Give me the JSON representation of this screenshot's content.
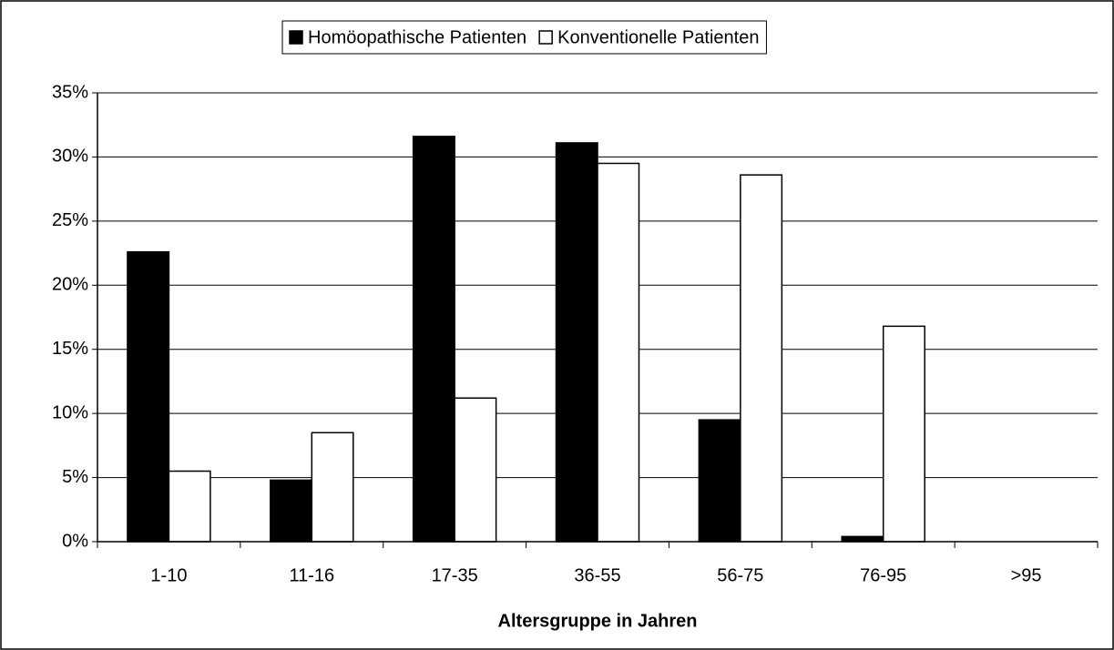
{
  "chart_data": {
    "type": "bar",
    "categories": [
      "1-10",
      "11-16",
      "17-35",
      "36-55",
      "56-75",
      "76-95",
      ">95"
    ],
    "series": [
      {
        "name": "Homöopathische Patienten",
        "color": "#000000",
        "values": [
          22.6,
          4.8,
          31.6,
          31.1,
          9.5,
          0.4,
          0
        ]
      },
      {
        "name": "Konventionelle Patienten",
        "color": "#ffffff",
        "values": [
          5.5,
          8.5,
          11.2,
          29.5,
          28.6,
          16.8,
          0
        ]
      }
    ],
    "xlabel": "Altersgruppe in Jahren",
    "ylim": [
      0,
      35
    ],
    "yticks": [
      {
        "value": 0,
        "label": "0%"
      },
      {
        "value": 5,
        "label": "5%"
      },
      {
        "value": 10,
        "label": "10%"
      },
      {
        "value": 15,
        "label": "15%"
      },
      {
        "value": 20,
        "label": "20%"
      },
      {
        "value": 25,
        "label": "25%"
      },
      {
        "value": 30,
        "label": "30%"
      },
      {
        "value": 35,
        "label": "35%"
      }
    ],
    "grid": true,
    "legend": "top"
  }
}
